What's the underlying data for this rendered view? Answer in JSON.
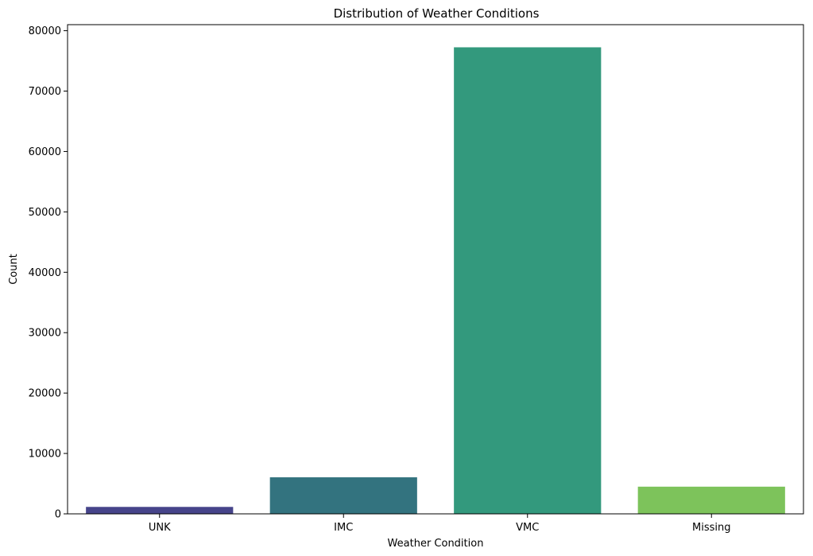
{
  "chart_data": {
    "type": "bar",
    "title": "Distribution of Weather Conditions",
    "xlabel": "Weather Condition",
    "ylabel": "Count",
    "categories": [
      "UNK",
      "IMC",
      "VMC",
      "Missing"
    ],
    "values": [
      1150,
      6050,
      77250,
      4500
    ],
    "colors": [
      "#46448a",
      "#33737f",
      "#33997d",
      "#7dc35b"
    ],
    "ylim": [
      0,
      81000
    ],
    "yticks": [
      0,
      10000,
      20000,
      30000,
      40000,
      50000,
      60000,
      70000,
      80000
    ],
    "grid": false,
    "legend": "none"
  }
}
